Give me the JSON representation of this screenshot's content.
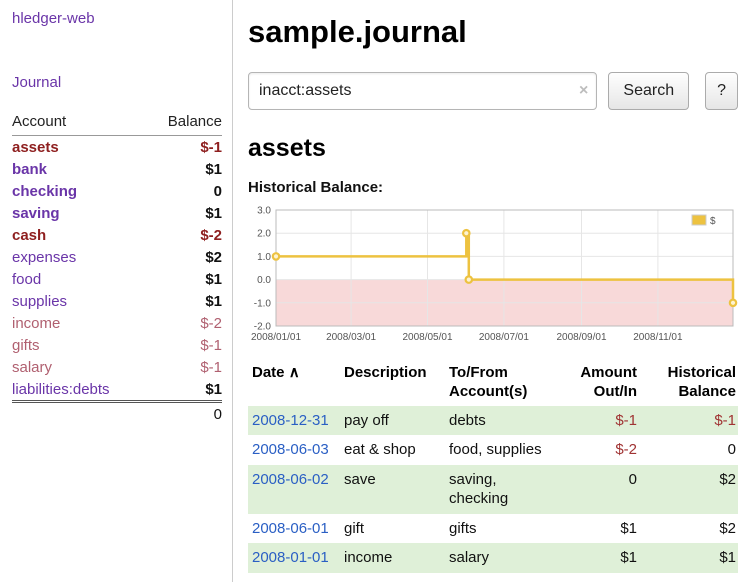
{
  "app": {
    "title": "hledger-web",
    "nav": {
      "journal": "Journal"
    }
  },
  "sidebar": {
    "columns": {
      "account": "Account",
      "balance": "Balance"
    },
    "accounts": [
      {
        "name": "assets",
        "balance": "$-1",
        "indent": 0,
        "bold": true,
        "negative": true
      },
      {
        "name": "bank",
        "balance": "$1",
        "indent": 1,
        "bold": true,
        "negative": false
      },
      {
        "name": "checking",
        "balance": "0",
        "indent": 2,
        "bold": true,
        "negative": false
      },
      {
        "name": "saving",
        "balance": "$1",
        "indent": 2,
        "bold": true,
        "negative": false
      },
      {
        "name": "cash",
        "balance": "$-2",
        "indent": 1,
        "bold": true,
        "negative": true
      },
      {
        "name": "expenses",
        "balance": "$2",
        "indent": 0,
        "bold": false,
        "negative": false
      },
      {
        "name": "food",
        "balance": "$1",
        "indent": 1,
        "bold": false,
        "negative": false
      },
      {
        "name": "supplies",
        "balance": "$1",
        "indent": 1,
        "bold": false,
        "negative": false
      },
      {
        "name": "income",
        "balance": "$-2",
        "indent": 0,
        "bold": false,
        "negative": true
      },
      {
        "name": "gifts",
        "balance": "$-1",
        "indent": 1,
        "bold": false,
        "negative": true
      },
      {
        "name": "salary",
        "balance": "$-1",
        "indent": 1,
        "bold": false,
        "negative": true
      },
      {
        "name": "liabilities:debts",
        "balance": "$1",
        "indent": 0,
        "bold": false,
        "negative": false
      }
    ],
    "total": "0"
  },
  "header": {
    "title": "sample.journal"
  },
  "search": {
    "value": "inacct:assets",
    "clear_icon": "×",
    "button": "Search",
    "help_button": "?"
  },
  "section": {
    "title": "assets",
    "chart_label": "Historical Balance:"
  },
  "chart_data": {
    "type": "line",
    "step": true,
    "title": "Historical Balance of assets",
    "ylim": [
      -2.0,
      3.0
    ],
    "yticks": [
      "3.0",
      "2.0",
      "1.0",
      "0.0",
      "-1.0",
      "-2.0"
    ],
    "xticks": [
      "2008/01/01",
      "2008/03/01",
      "2008/05/01",
      "2008/07/01",
      "2008/09/01",
      "2008/11/01"
    ],
    "x_range_days": [
      0,
      365
    ],
    "legend": [
      {
        "label": "$",
        "color": "#edc240",
        "position": "top-right"
      }
    ],
    "series": [
      {
        "name": "$",
        "color": "#edc240",
        "points": [
          {
            "date": "2008-01-01",
            "value": 1
          },
          {
            "date": "2008-06-01",
            "value": 2
          },
          {
            "date": "2008-06-03",
            "value": 0
          },
          {
            "date": "2008-12-31",
            "value": -1
          }
        ]
      }
    ],
    "negative_fill": "#f8d9d9",
    "grid": true
  },
  "table": {
    "headers": {
      "date": "Date",
      "sort_icon": "∧",
      "description": "Description",
      "tofrom": "To/From Account(s)",
      "amount": "Amount Out/In",
      "balance": "Historical Balance"
    },
    "rows": [
      {
        "date": "2008-12-31",
        "description": "pay off",
        "accounts": "debts",
        "amount": "$-1",
        "balance": "$-1",
        "shaded": true
      },
      {
        "date": "2008-06-03",
        "description": "eat & shop",
        "accounts": "food, supplies",
        "amount": "$-2",
        "balance": "0",
        "shaded": false
      },
      {
        "date": "2008-06-02",
        "description": "save",
        "accounts": "saving, checking",
        "amount": "0",
        "balance": "$2",
        "shaded": true
      },
      {
        "date": "2008-06-01",
        "description": "gift",
        "accounts": "gifts",
        "amount": "$1",
        "balance": "$2",
        "shaded": false
      },
      {
        "date": "2008-01-01",
        "description": "income",
        "accounts": "salary",
        "amount": "$1",
        "balance": "$1",
        "shaded": true
      }
    ]
  },
  "colors": {
    "link_purple": "#6a35a8",
    "negative_dark_red": "#8e1f1f",
    "negative_rose": "#b06070",
    "table_negative_red": "#a03333",
    "date_link_blue": "#2a5fc4",
    "shaded_row_green": "#dff0d8",
    "chart_gold": "#edc240"
  }
}
